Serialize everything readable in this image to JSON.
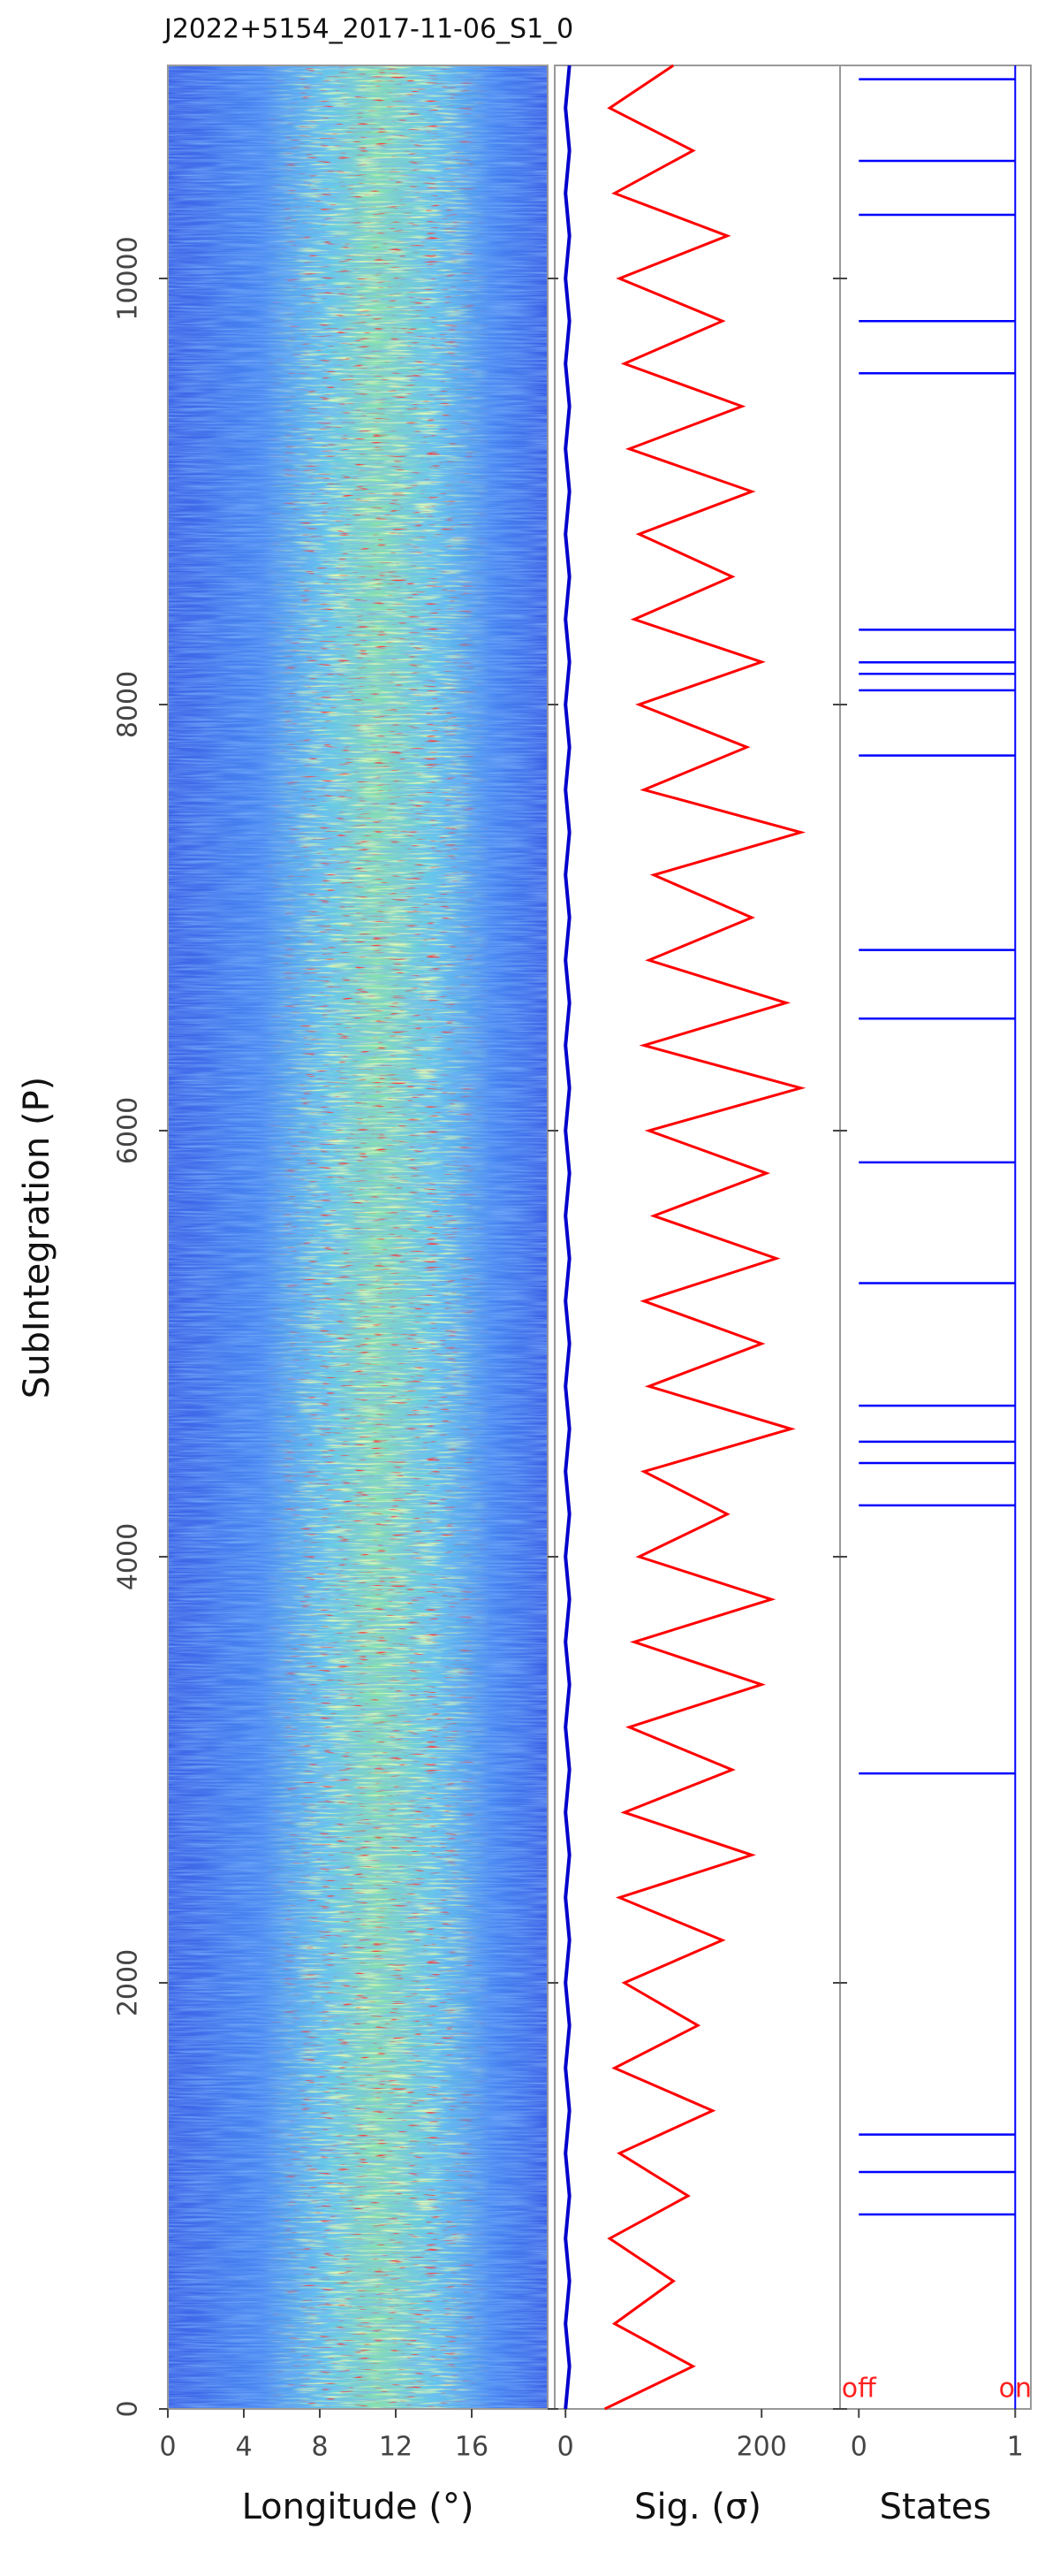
{
  "chart_data": [
    {
      "type": "heatmap",
      "title": "J2022+5154_2017-11-06_S1_0",
      "ylabel": "SubIntegration (P)",
      "ylim": [
        0,
        11000
      ],
      "yticks": [
        0,
        2000,
        4000,
        6000,
        8000,
        10000
      ],
      "xlabel": "Longitude (°)",
      "xlim": [
        0,
        20
      ],
      "xticks": [
        0,
        4,
        8,
        12,
        16
      ]
    },
    {
      "type": "line",
      "orientation": "horizontal",
      "xlabel": "Sig. (σ)",
      "xlim": [
        -11,
        280
      ],
      "xticks": [
        0,
        200
      ],
      "ylim": [
        0,
        11000
      ],
      "x": [
        0,
        200,
        400,
        600,
        800,
        1000,
        1200,
        1400,
        1600,
        1800,
        2000,
        2200,
        2400,
        2600,
        2800,
        3000,
        3200,
        3400,
        3600,
        3800,
        4000,
        4200,
        4400,
        4600,
        4800,
        5000,
        5200,
        5400,
        5600,
        5800,
        6000,
        6200,
        6400,
        6600,
        6800,
        7000,
        7200,
        7400,
        7600,
        7800,
        8000,
        8200,
        8400,
        8600,
        8800,
        9000,
        9200,
        9400,
        9600,
        9800,
        10000,
        10200,
        10400,
        10600,
        10800,
        11000
      ],
      "series": [
        {
          "color": "#ff0000",
          "values": [
            40,
            130,
            50,
            110,
            45,
            125,
            55,
            150,
            50,
            135,
            60,
            160,
            55,
            190,
            60,
            170,
            65,
            200,
            70,
            210,
            75,
            165,
            80,
            230,
            85,
            200,
            80,
            215,
            90,
            205,
            85,
            240,
            80,
            225,
            85,
            190,
            90,
            240,
            80,
            185,
            75,
            200,
            70,
            170,
            75,
            190,
            65,
            180,
            60,
            160,
            55,
            165,
            50,
            130,
            45,
            110
          ]
        },
        {
          "color": "#0000cc",
          "values": [
            0,
            4,
            0,
            4,
            0,
            4,
            0,
            4,
            0,
            4,
            0,
            4,
            0,
            4,
            0,
            4,
            0,
            4,
            0,
            4,
            0,
            4,
            0,
            4,
            0,
            4,
            0,
            4,
            0,
            4,
            0,
            4,
            0,
            4,
            0,
            4,
            0,
            4,
            0,
            4,
            0,
            4,
            0,
            4,
            0,
            4,
            0,
            4,
            0,
            4,
            0,
            4,
            0,
            4,
            0,
            4
          ]
        }
      ]
    },
    {
      "type": "states",
      "xlabel": "States",
      "xlim": [
        -0.12,
        1.1
      ],
      "xticks": [
        0,
        1
      ],
      "state_labels": [
        "off",
        "on"
      ],
      "ylim": [
        0,
        11000
      ],
      "color": "#0000ff",
      "off_pulses": [
        10935,
        10552,
        10299,
        9800,
        9555,
        8351,
        8198,
        8144,
        8067,
        7761,
        6848,
        6526,
        5851,
        5284,
        4709,
        4540,
        4440,
        4241,
        2983,
        1288,
        1112,
        913
      ]
    }
  ]
}
